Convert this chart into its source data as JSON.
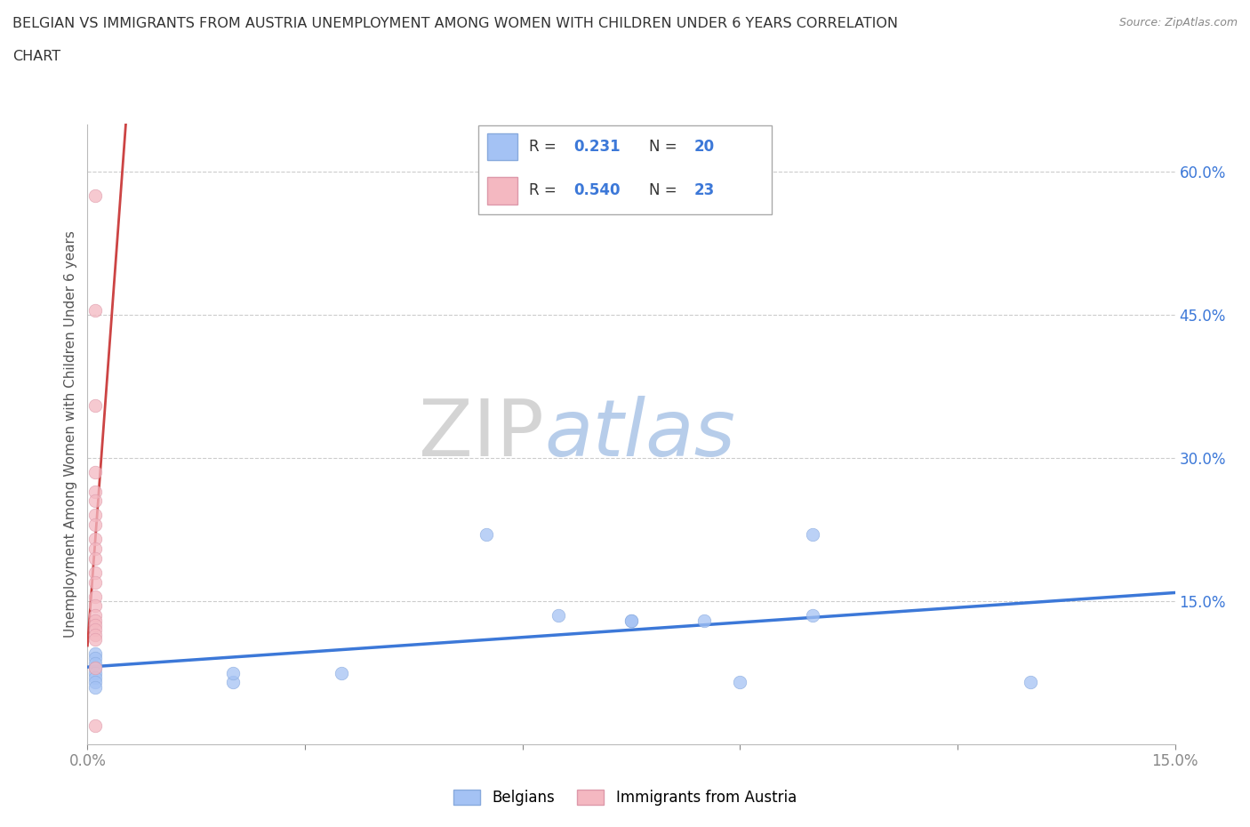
{
  "title_line1": "BELGIAN VS IMMIGRANTS FROM AUSTRIA UNEMPLOYMENT AMONG WOMEN WITH CHILDREN UNDER 6 YEARS CORRELATION",
  "title_line2": "CHART",
  "source": "Source: ZipAtlas.com",
  "ylabel": "Unemployment Among Women with Children Under 6 years",
  "xlim": [
    0.0,
    0.15
  ],
  "ylim": [
    0.0,
    0.65
  ],
  "belgian_color": "#a4c2f4",
  "austrian_color": "#f4b8c1",
  "belgian_line_color": "#3c78d8",
  "austrian_line_color": "#cc4444",
  "watermark_zip": "ZIP",
  "watermark_atlas": "atlas",
  "legend_R1": "0.231",
  "legend_N1": "20",
  "legend_R2": "0.540",
  "legend_N2": "23",
  "belgian_x": [
    0.001,
    0.001,
    0.001,
    0.001,
    0.001,
    0.001,
    0.001,
    0.001,
    0.02,
    0.02,
    0.035,
    0.055,
    0.065,
    0.075,
    0.075,
    0.085,
    0.09,
    0.1,
    0.1,
    0.13
  ],
  "belgian_y": [
    0.095,
    0.09,
    0.085,
    0.08,
    0.075,
    0.07,
    0.065,
    0.06,
    0.065,
    0.075,
    0.075,
    0.22,
    0.135,
    0.13,
    0.13,
    0.13,
    0.065,
    0.135,
    0.22,
    0.065
  ],
  "austrian_x": [
    0.001,
    0.001,
    0.001,
    0.001,
    0.001,
    0.001,
    0.001,
    0.001,
    0.001,
    0.001,
    0.001,
    0.001,
    0.001,
    0.001,
    0.001,
    0.001,
    0.001,
    0.001,
    0.001,
    0.001,
    0.001,
    0.001,
    0.001
  ],
  "austrian_y": [
    0.575,
    0.455,
    0.355,
    0.285,
    0.265,
    0.255,
    0.24,
    0.23,
    0.215,
    0.205,
    0.195,
    0.18,
    0.17,
    0.155,
    0.145,
    0.135,
    0.13,
    0.125,
    0.12,
    0.115,
    0.11,
    0.08,
    0.02
  ],
  "background_color": "#ffffff",
  "grid_color": "#cccccc",
  "marker_size": 110
}
